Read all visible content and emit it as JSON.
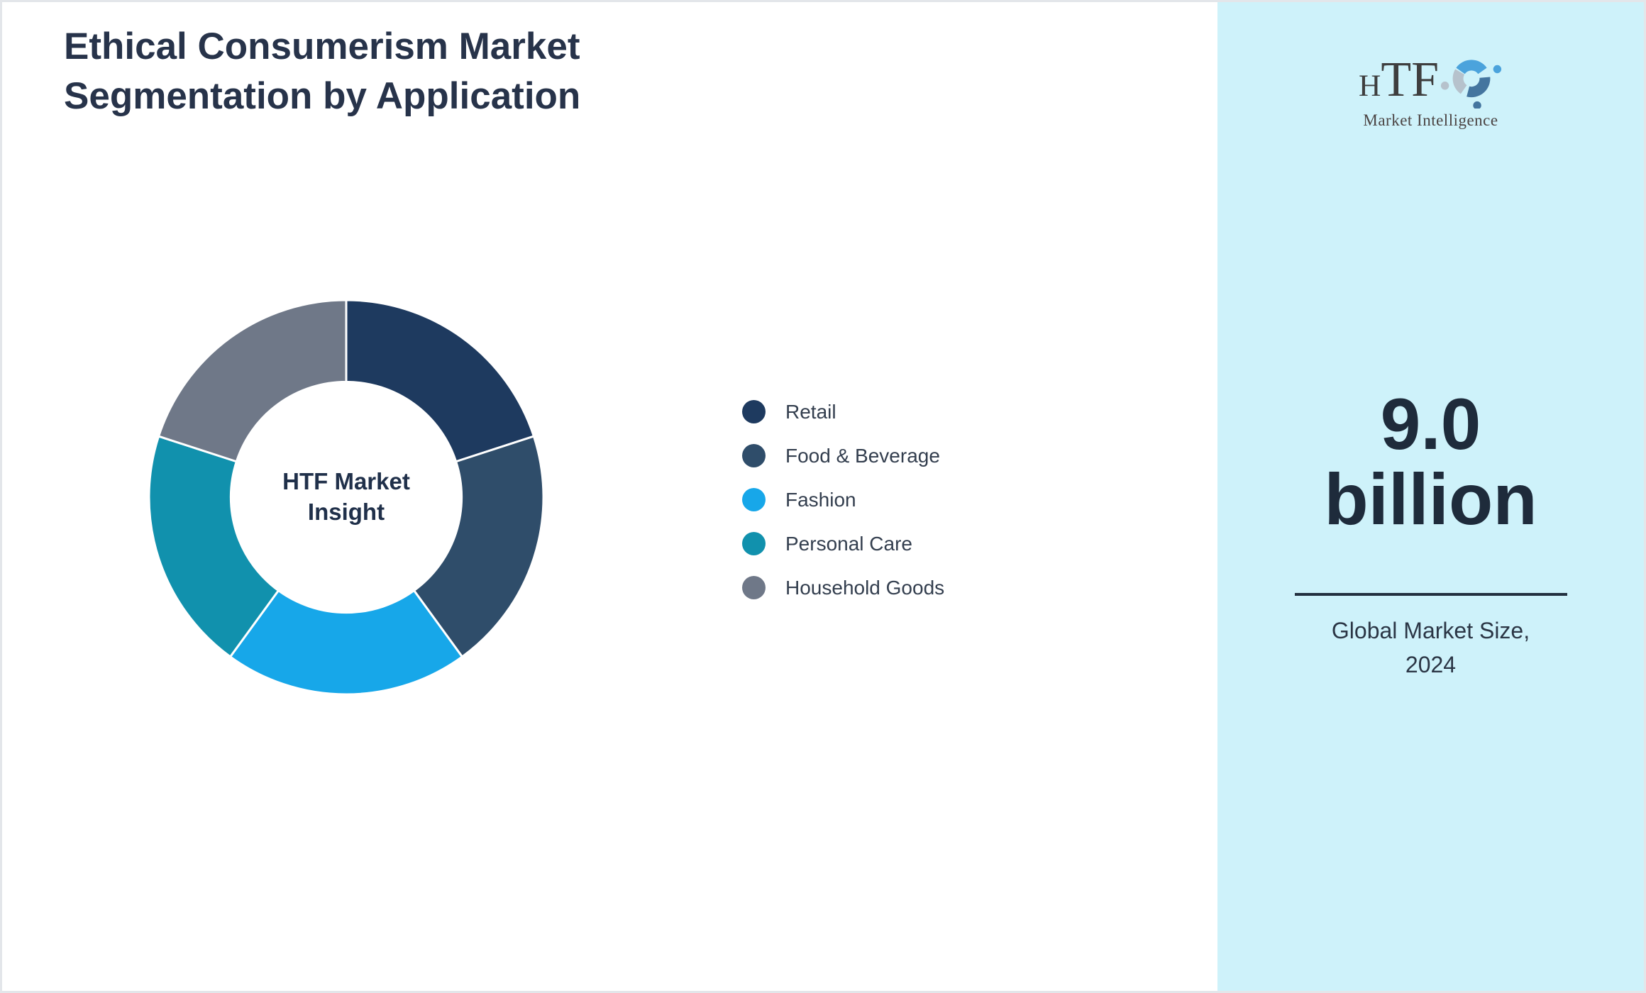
{
  "title": "Ethical Consumerism Market Segmentation by Application",
  "chart_data": {
    "type": "pie",
    "subtype": "donut",
    "title": "Ethical Consumerism Market Segmentation by Application",
    "center_label": "HTF Market Insight",
    "start_angle_deg": 0,
    "direction": "clockwise",
    "inner_radius_ratio": 0.585,
    "legend_position": "right",
    "segments": [
      {
        "label": "Retail",
        "value_pct": 20,
        "color": "#1e3a5f"
      },
      {
        "label": "Food & Beverage",
        "value_pct": 20,
        "color": "#2f4d6a"
      },
      {
        "label": "Fashion",
        "value_pct": 20,
        "color": "#17a7e9"
      },
      {
        "label": "Personal Care",
        "value_pct": 20,
        "color": "#1191ad"
      },
      {
        "label": "Household Goods",
        "value_pct": 20,
        "color": "#6f7888"
      }
    ]
  },
  "sidebar": {
    "background_color": "#cef2fa",
    "logo": {
      "text": "HTF",
      "subtext": "Market Intelligence",
      "icon_colors": [
        "#4ba3dc",
        "#44759f",
        "#b6c2cc"
      ]
    },
    "market_size_value": "9.0 billion",
    "market_size_caption": "Global Market Size, 2024"
  }
}
